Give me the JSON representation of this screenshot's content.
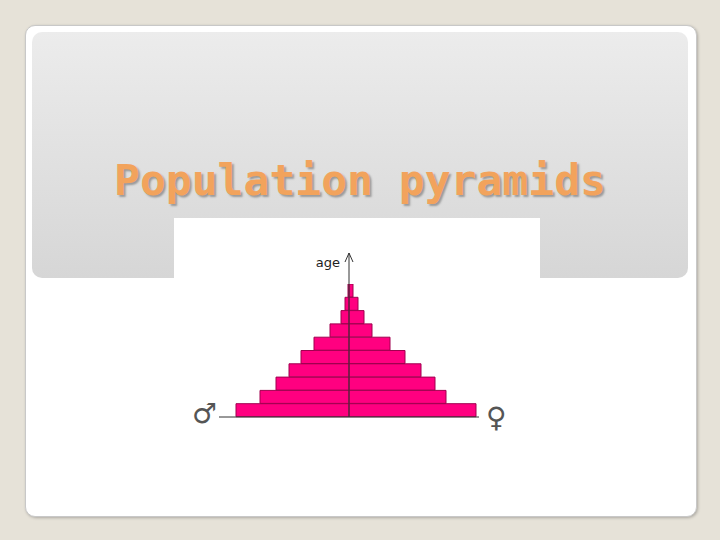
{
  "chart_data": {
    "type": "bar",
    "title": "Population pyramids",
    "y_label": "age",
    "orientation": "horizontal",
    "grid": false,
    "tick_labels": false,
    "categories": [
      null,
      null,
      null,
      null,
      null,
      null,
      null,
      null,
      null,
      null
    ],
    "xlim": [
      0,
      130
    ],
    "series": [
      {
        "name": "♂",
        "color": "#ff0080",
        "values": [
          113,
          89,
          73,
          60,
          48,
          35,
          19,
          8,
          4,
          1
        ]
      },
      {
        "name": "♀",
        "color": "#ff0080",
        "values": [
          127,
          97,
          86,
          72,
          56,
          41,
          23,
          15,
          9,
          4
        ]
      }
    ]
  }
}
